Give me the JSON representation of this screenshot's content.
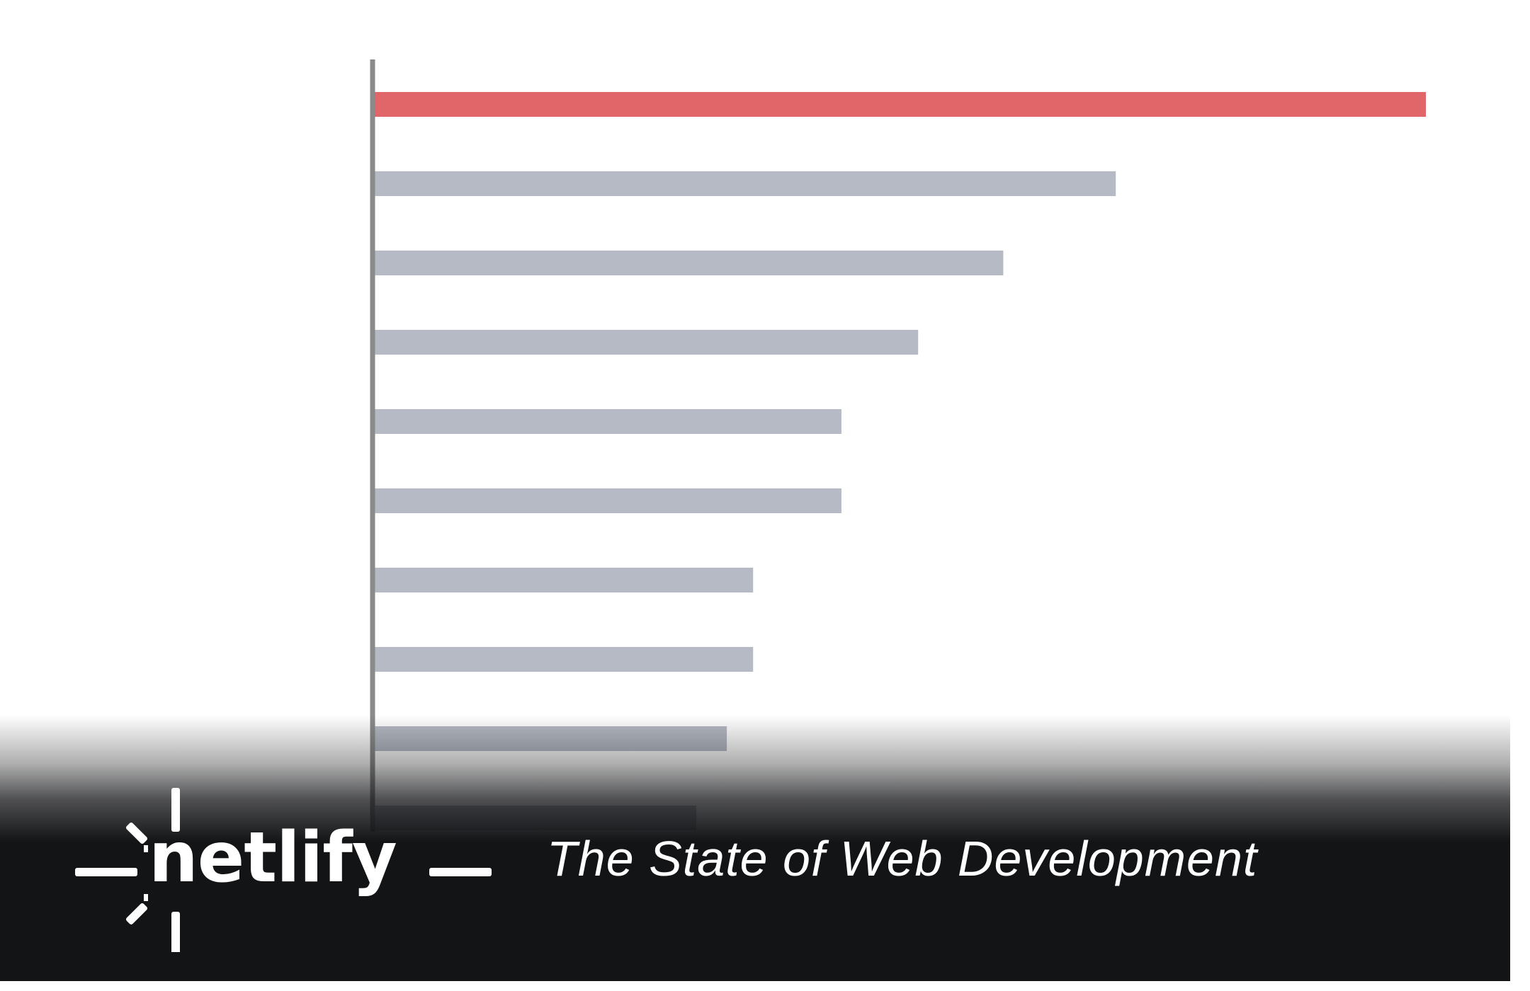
{
  "chart_data": {
    "type": "bar",
    "orientation": "horizontal",
    "title": "",
    "xlabel": "",
    "ylabel": "",
    "categories": [
      "",
      "",
      "",
      "",
      "",
      "",
      "",
      "",
      "",
      ""
    ],
    "values": [
      100,
      70.5,
      59.8,
      51.7,
      44.4,
      44.4,
      36.0,
      36.0,
      33.5,
      30.6
    ],
    "xlim": [
      0,
      100
    ],
    "highlight_index": 0,
    "colors": {
      "highlight": "#e0666a",
      "default": "#b5bac4",
      "axis": "#8a8a8a"
    },
    "grid": false,
    "legend": "none"
  },
  "branding": {
    "wordmark": "netlify",
    "tagline": "The State of Web Development",
    "colors": {
      "band": "#131416",
      "text": "#ffffff"
    }
  }
}
